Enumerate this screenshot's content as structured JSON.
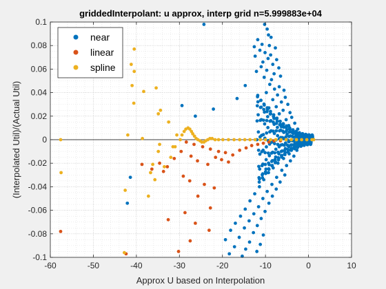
{
  "chart_data": {
    "type": "scatter",
    "title": "griddedInterpolant: u approx, interp grid n=5.999883e+04",
    "xlabel": "Approx U based on Interpolation",
    "ylabel": "(Interpolated Util)/(Actual Util)",
    "xlim": [
      -60,
      10
    ],
    "ylim": [
      -0.1,
      0.1
    ],
    "xticks": [
      "-60",
      "-50",
      "-40",
      "-30",
      "-20",
      "-10",
      "0",
      "10"
    ],
    "yticks": [
      "-0.1",
      "-0.08",
      "-0.06",
      "-0.04",
      "-0.02",
      "0",
      "0.02",
      "0.04",
      "0.06",
      "0.08",
      "0.1"
    ],
    "grid": "major and minor dotted",
    "legend_position": "top-left",
    "series": [
      {
        "name": "near",
        "color": "#0072BD",
        "points": [
          [
            -24.3,
            0.098
          ],
          [
            -10.2,
            0.098
          ],
          [
            -9.6,
            0.094
          ],
          [
            -9.3,
            0.089
          ],
          [
            -8.7,
            0.087
          ],
          [
            -11.8,
            0.085
          ],
          [
            -10.8,
            0.081
          ],
          [
            -9.1,
            0.08
          ],
          [
            -12.6,
            0.079
          ],
          [
            -7.7,
            0.078
          ],
          [
            -11.3,
            0.076
          ],
          [
            -10.1,
            0.074
          ],
          [
            -8.8,
            0.072
          ],
          [
            -12.4,
            0.071
          ],
          [
            -9.4,
            0.069
          ],
          [
            -7.4,
            0.068
          ],
          [
            -10.6,
            0.066
          ],
          [
            -8.3,
            0.064
          ],
          [
            -11.0,
            0.062
          ],
          [
            -6.9,
            0.061
          ],
          [
            -9.7,
            0.059
          ],
          [
            -12.1,
            0.058
          ],
          [
            -8.0,
            0.056
          ],
          [
            -6.5,
            0.054
          ],
          [
            -10.3,
            0.053
          ],
          [
            -8.6,
            0.051
          ],
          [
            -14.7,
            0.046
          ],
          [
            -9.0,
            0.047
          ],
          [
            -6.8,
            0.045
          ],
          [
            -7.9,
            0.043
          ],
          [
            -5.7,
            0.042
          ],
          [
            -9.8,
            0.04
          ],
          [
            -16.6,
            0.035
          ],
          [
            -7.2,
            0.038
          ],
          [
            -5.4,
            0.036
          ],
          [
            -8.3,
            0.034
          ],
          [
            -6.3,
            0.032
          ],
          [
            -29.4,
            0.029
          ],
          [
            -4.8,
            0.03
          ],
          [
            -7.5,
            0.028
          ],
          [
            -9.2,
            0.027
          ],
          [
            -5.9,
            0.025
          ],
          [
            -22.1,
            0.026
          ],
          [
            -4.3,
            0.023
          ],
          [
            -6.8,
            0.022
          ],
          [
            -26.3,
            0.02
          ],
          [
            -3.9,
            0.019
          ],
          [
            -5.2,
            0.017
          ],
          [
            -8.0,
            0.018
          ],
          [
            -3.2,
            0.014
          ],
          [
            -4.6,
            0.012
          ],
          [
            -6.3,
            0.011
          ],
          [
            -2.5,
            0.009
          ],
          [
            -3.6,
            0.007
          ],
          [
            -1.8,
            0.004
          ],
          [
            -2.8,
            0.003
          ],
          [
            -1.0,
            0.002
          ],
          [
            -1.0,
            -0.002
          ],
          [
            -2.2,
            -0.003
          ],
          [
            -1.6,
            -0.005
          ],
          [
            -3.3,
            -0.007
          ],
          [
            -2.7,
            -0.009
          ],
          [
            -4.5,
            -0.012
          ],
          [
            -3.4,
            -0.014
          ],
          [
            -5.8,
            -0.016
          ],
          [
            -4.2,
            -0.018
          ],
          [
            -7.1,
            -0.02
          ],
          [
            -5.1,
            -0.022
          ],
          [
            -8.2,
            -0.024
          ],
          [
            -6.2,
            -0.026
          ],
          [
            -9.3,
            -0.028
          ],
          [
            -5.5,
            -0.03
          ],
          [
            -7.4,
            -0.032
          ],
          [
            -10.4,
            -0.034
          ],
          [
            -6.6,
            -0.036
          ],
          [
            -8.5,
            -0.038
          ],
          [
            -41.4,
            -0.032
          ],
          [
            -11.4,
            -0.04
          ],
          [
            -7.5,
            -0.042
          ],
          [
            -9.6,
            -0.044
          ],
          [
            -12.5,
            -0.046
          ],
          [
            -8.4,
            -0.048
          ],
          [
            -10.6,
            -0.05
          ],
          [
            -13.6,
            -0.052
          ],
          [
            -42.1,
            -0.054
          ],
          [
            -9.2,
            -0.054
          ],
          [
            -11.6,
            -0.057
          ],
          [
            -14.7,
            -0.059
          ],
          [
            -10.1,
            -0.061
          ],
          [
            -12.7,
            -0.063
          ],
          [
            -15.8,
            -0.065
          ],
          [
            -11.0,
            -0.067
          ],
          [
            -13.8,
            -0.069
          ],
          [
            -17.0,
            -0.071
          ],
          [
            -11.9,
            -0.073
          ],
          [
            -14.9,
            -0.075
          ],
          [
            -18.1,
            -0.077
          ],
          [
            -12.8,
            -0.079
          ],
          [
            -10.5,
            -0.081
          ],
          [
            -16.1,
            -0.083
          ],
          [
            -19.3,
            -0.085
          ],
          [
            -13.7,
            -0.087
          ],
          [
            -11.2,
            -0.089
          ],
          [
            -17.2,
            -0.091
          ],
          [
            -14.6,
            -0.093
          ],
          [
            -12.0,
            -0.095
          ],
          [
            -18.4,
            -0.097
          ],
          [
            -15.4,
            -0.099
          ]
        ]
      },
      {
        "name": "linear",
        "color": "#D95319",
        "points": [
          [
            -28.4,
            -0.002
          ],
          [
            -26.6,
            -0.004
          ],
          [
            -24.6,
            -0.006
          ],
          [
            -22.8,
            -0.008
          ],
          [
            -20.9,
            -0.01
          ],
          [
            -19.3,
            -0.011
          ],
          [
            -17.6,
            -0.013
          ],
          [
            -16.0,
            -0.009
          ],
          [
            -14.5,
            -0.007
          ],
          [
            -13.2,
            -0.005
          ],
          [
            -11.8,
            -0.004
          ],
          [
            -10.5,
            -0.003
          ],
          [
            -9.2,
            -0.002
          ],
          [
            -8.0,
            -0.001
          ],
          [
            -6.5,
            -0.001
          ],
          [
            -21.6,
            -0.015
          ],
          [
            -20.2,
            -0.017
          ],
          [
            -18.6,
            -0.019
          ],
          [
            -23.4,
            -0.021
          ],
          [
            -25.8,
            -0.018
          ],
          [
            -27.3,
            -0.014
          ],
          [
            -29.6,
            -0.01
          ],
          [
            -31.2,
            -0.016
          ],
          [
            -32.8,
            -0.023
          ],
          [
            -34.6,
            -0.02
          ],
          [
            -36.4,
            -0.025
          ],
          [
            -38.7,
            -0.021
          ],
          [
            -33.7,
            -0.027
          ],
          [
            -29.1,
            -0.031
          ],
          [
            -27.6,
            -0.035
          ],
          [
            -24.2,
            -0.038
          ],
          [
            -21.9,
            -0.041
          ],
          [
            -25.7,
            -0.048
          ],
          [
            -22.8,
            -0.058
          ],
          [
            -28.7,
            -0.062
          ],
          [
            -26.3,
            -0.071
          ],
          [
            -23.1,
            -0.077
          ],
          [
            -57.6,
            -0.078
          ],
          [
            -42.4,
            -0.097
          ],
          [
            -30.2,
            -0.095
          ],
          [
            -27.5,
            -0.086
          ],
          [
            -32.6,
            -0.068
          ]
        ]
      },
      {
        "name": "spline",
        "color": "#EDB120",
        "points": [
          [
            -57.6,
            0.0
          ],
          [
            -57.5,
            -0.028
          ],
          [
            -40.5,
            0.077
          ],
          [
            -41.2,
            0.064
          ],
          [
            -40.5,
            0.058
          ],
          [
            -41.0,
            0.046
          ],
          [
            -38.3,
            0.041
          ],
          [
            -35.4,
            0.044
          ],
          [
            -34.4,
            0.025
          ],
          [
            -34.9,
            0.022
          ],
          [
            -32.5,
            0.015
          ],
          [
            -30.6,
            0.004
          ],
          [
            -34.6,
            -0.004
          ],
          [
            -31.5,
            -0.006
          ],
          [
            -34.9,
            -0.01
          ],
          [
            -36.2,
            -0.021
          ],
          [
            -40.6,
            0.031
          ],
          [
            -42.0,
            0.004
          ],
          [
            -38.6,
            0.001
          ],
          [
            -36.7,
            -0.028
          ],
          [
            -33.5,
            -0.023
          ],
          [
            -35.7,
            -0.034
          ],
          [
            -37.2,
            -0.048
          ],
          [
            -42.6,
            -0.043
          ],
          [
            -42.8,
            -0.096
          ],
          [
            -32.0,
            -0.015
          ],
          [
            -31.0,
            -0.006
          ],
          [
            -29.8,
            0.0
          ],
          [
            -29.4,
            0.004
          ],
          [
            -28.9,
            0.007
          ],
          [
            -28.5,
            0.009
          ],
          [
            -28.0,
            0.01
          ],
          [
            -27.6,
            0.009
          ],
          [
            -27.2,
            0.007
          ],
          [
            -26.9,
            0.005
          ],
          [
            -26.5,
            0.003
          ],
          [
            -26.1,
            0.001
          ],
          [
            -25.7,
            0.0
          ],
          [
            -25.2,
            -0.001
          ],
          [
            -24.8,
            -0.002
          ],
          [
            -24.3,
            -0.002
          ],
          [
            -23.9,
            -0.001
          ],
          [
            -23.4,
            0.0
          ],
          [
            -22.9,
            0.001
          ],
          [
            -22.4,
            0.001
          ],
          [
            -21.7,
            0.0
          ],
          [
            -20.9,
            0.0
          ],
          [
            -19.9,
            0.0
          ],
          [
            -18.6,
            0.0
          ],
          [
            -17.3,
            0.0
          ],
          [
            -16.0,
            0.0
          ],
          [
            -14.8,
            0.0
          ],
          [
            -13.6,
            0.0
          ],
          [
            -12.4,
            0.0
          ],
          [
            -11.2,
            0.0
          ],
          [
            -10.0,
            0.0
          ],
          [
            -8.8,
            0.0
          ],
          [
            -7.6,
            0.0
          ],
          [
            -6.4,
            0.0
          ],
          [
            -5.2,
            0.0
          ],
          [
            -4.0,
            0.0
          ],
          [
            -2.8,
            0.0
          ],
          [
            -1.6,
            0.0
          ],
          [
            -0.4,
            0.0
          ],
          [
            0.8,
            0.0
          ],
          [
            1.2,
            0.0
          ]
        ]
      }
    ]
  }
}
